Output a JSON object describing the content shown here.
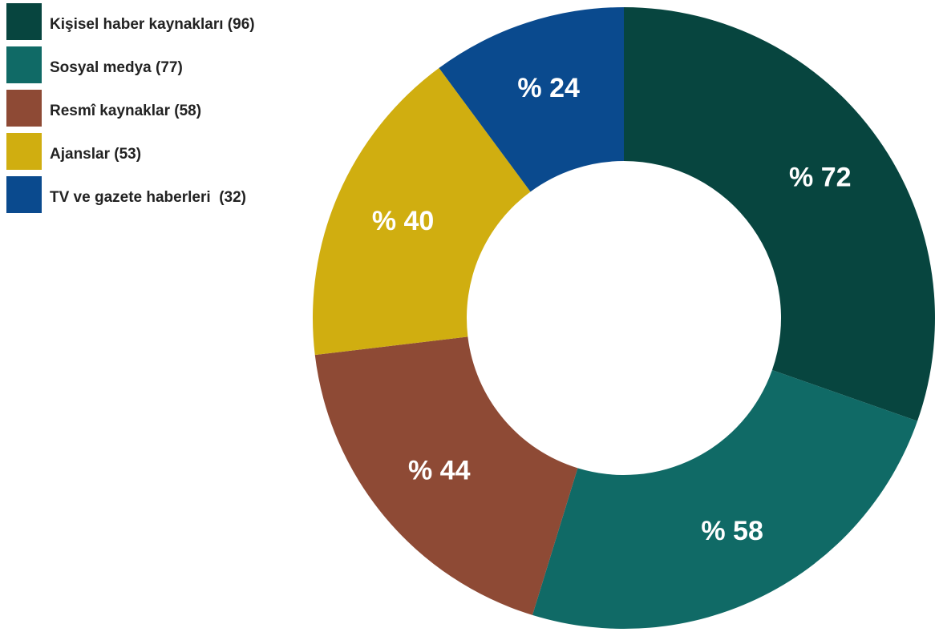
{
  "chart_data": {
    "type": "pie",
    "categories": [
      "Kişisel haber kaynakları (96)",
      "Sosyal medya (77)",
      "Resmî kaynaklar (58)",
      "Ajanslar (53)",
      "TV ve gazete haberleri  (32)"
    ],
    "values": [
      96,
      77,
      58,
      53,
      32
    ],
    "slice_labels": [
      "% 72",
      "% 58",
      "% 44",
      "% 40",
      "% 24"
    ],
    "colors": [
      "#07453f",
      "#106a66",
      "#8e4a35",
      "#d0ae10",
      "#0a4a8e"
    ],
    "donut": true,
    "legend": "top-left"
  }
}
